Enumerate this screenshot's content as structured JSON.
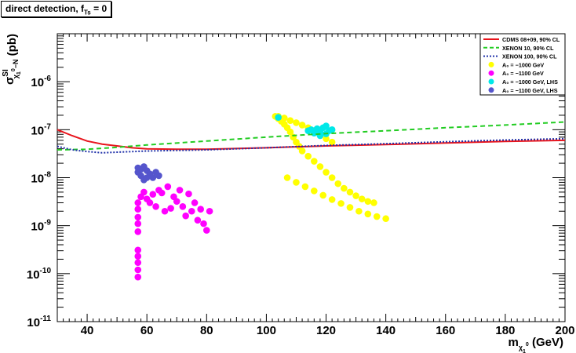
{
  "title": {
    "text": "direct detection, f",
    "sub": "Ts",
    "suffix": " = 0"
  },
  "chart_data": {
    "type": "scatter",
    "title": "direct detection, f_Ts = 0",
    "xlabel": "m_χ1⁰ (GeV)",
    "ylabel": "σ^SI_χ1⁰-N (pb)",
    "xlim": [
      30,
      200
    ],
    "ylim": [
      1e-11,
      1e-05
    ],
    "yscale": "log",
    "x_ticks": [
      40,
      60,
      80,
      100,
      120,
      140,
      160,
      180,
      200
    ],
    "x_tick_labels": [
      "40",
      "60",
      "80",
      "100",
      "120",
      "140",
      "160",
      "180",
      "200"
    ],
    "y_ticks": [
      1e-11,
      1e-10,
      1e-09,
      1e-08,
      1e-07,
      1e-06
    ],
    "y_tick_labels": [
      [
        "10",
        "-11"
      ],
      [
        "10",
        "-10"
      ],
      [
        "10",
        "-9"
      ],
      [
        "10",
        "-8"
      ],
      [
        "10",
        "-7"
      ],
      [
        "10",
        "-6"
      ]
    ],
    "grid": false,
    "legend_position": "top-right",
    "series": [
      {
        "name": "CDMS 08+09, 90% CL",
        "kind": "line",
        "color": "#e8141c",
        "dash": "solid",
        "x": [
          30,
          35,
          40,
          45,
          50,
          55,
          60,
          70,
          80,
          100,
          120,
          140,
          160,
          180,
          200
        ],
        "y": [
          1e-07,
          7.5e-08,
          5.8e-08,
          5e-08,
          4.6e-08,
          4.2e-08,
          4e-08,
          3.9e-08,
          3.9e-08,
          4.2e-08,
          4.6e-08,
          4.9e-08,
          5.3e-08,
          5.7e-08,
          6e-08
        ]
      },
      {
        "name": "XENON 10, 90% CL",
        "kind": "line",
        "color": "#22cc22",
        "dash": "dashed",
        "x": [
          30,
          40,
          50,
          60,
          80,
          100,
          120,
          140,
          160,
          180,
          200
        ],
        "y": [
          3.8e-08,
          3.9e-08,
          4.3e-08,
          4.8e-08,
          5.8e-08,
          7e-08,
          8.3e-08,
          9.5e-08,
          1.1e-07,
          1.25e-07,
          1.45e-07
        ]
      },
      {
        "name": "XENON 100, 90% CL",
        "kind": "line",
        "color": "#2233aa",
        "dash": "dotted",
        "x": [
          30,
          35,
          40,
          45,
          50,
          60,
          80,
          100,
          120,
          140,
          160,
          180,
          200
        ],
        "y": [
          4.5e-08,
          3.8e-08,
          3.5e-08,
          3.3e-08,
          3.4e-08,
          3.6e-08,
          3.8e-08,
          4.2e-08,
          4.7e-08,
          5.1e-08,
          5.6e-08,
          6.1e-08,
          6.5e-08
        ]
      },
      {
        "name": "A₀ = −1000 GeV",
        "kind": "scatter",
        "color": "#ffff00",
        "points": [
          [
            103,
            1.9e-07
          ],
          [
            104,
            1.7e-07
          ],
          [
            105,
            1.5e-07
          ],
          [
            106,
            1.3e-07
          ],
          [
            107,
            1.1e-07
          ],
          [
            108,
            9e-08
          ],
          [
            109,
            7e-08
          ],
          [
            110,
            5.5e-08
          ],
          [
            111,
            4.5e-08
          ],
          [
            112,
            3.6e-08
          ],
          [
            114,
            2.8e-08
          ],
          [
            116,
            2.2e-08
          ],
          [
            118,
            1.7e-08
          ],
          [
            120,
            1.3e-08
          ],
          [
            122,
            1e-08
          ],
          [
            124,
            7.5e-09
          ],
          [
            126,
            6e-09
          ],
          [
            128,
            5e-09
          ],
          [
            130,
            4.2e-09
          ],
          [
            132,
            3.6e-09
          ],
          [
            134,
            3.2e-09
          ],
          [
            136,
            3e-09
          ],
          [
            104,
            1.9e-07
          ],
          [
            106,
            1.75e-07
          ],
          [
            108,
            1.55e-07
          ],
          [
            110,
            1.4e-07
          ],
          [
            112,
            1.25e-07
          ],
          [
            114,
            1.1e-07
          ],
          [
            116,
            9.5e-08
          ],
          [
            118,
            8e-08
          ],
          [
            120,
            6.5e-08
          ],
          [
            122,
            5.5e-08
          ],
          [
            107,
            1e-08
          ],
          [
            110,
            8e-09
          ],
          [
            113,
            6.5e-09
          ],
          [
            116,
            5.3e-09
          ],
          [
            119,
            4.3e-09
          ],
          [
            122,
            3.5e-09
          ],
          [
            125,
            2.9e-09
          ],
          [
            128,
            2.4e-09
          ],
          [
            131,
            2e-09
          ],
          [
            134,
            1.75e-09
          ],
          [
            137,
            1.55e-09
          ],
          [
            140,
            1.4e-09
          ]
        ]
      },
      {
        "name": "A₀ = −1100 GeV",
        "kind": "scatter",
        "color": "#ff00ff",
        "points": [
          [
            57,
            8.5e-11
          ],
          [
            57,
            1.2e-10
          ],
          [
            57,
            1.7e-10
          ],
          [
            57,
            2.3e-10
          ],
          [
            57,
            3.1e-10
          ],
          [
            57,
            7.5e-10
          ],
          [
            57,
            1.1e-09
          ],
          [
            57,
            1.5e-09
          ],
          [
            57,
            2.2e-09
          ],
          [
            57,
            3e-09
          ],
          [
            58,
            4e-09
          ],
          [
            59,
            5e-09
          ],
          [
            60,
            3.6e-09
          ],
          [
            61,
            3e-09
          ],
          [
            62,
            4.5e-09
          ],
          [
            63,
            2.5e-09
          ],
          [
            64,
            5.5e-09
          ],
          [
            65,
            4.8e-09
          ],
          [
            66,
            2e-09
          ],
          [
            67,
            6.5e-09
          ],
          [
            68,
            2.3e-09
          ],
          [
            69,
            4e-09
          ],
          [
            70,
            3.2e-09
          ],
          [
            71,
            5.5e-09
          ],
          [
            72,
            2.5e-09
          ],
          [
            73,
            1.6e-09
          ],
          [
            74,
            4.6e-09
          ],
          [
            75,
            2e-09
          ],
          [
            76,
            3e-09
          ],
          [
            77,
            1.3e-09
          ],
          [
            78,
            2.2e-09
          ],
          [
            79,
            1.1e-09
          ],
          [
            80,
            8e-10
          ],
          [
            81,
            2e-09
          ]
        ]
      },
      {
        "name": "A₀ = −1000 GeV, LHS",
        "kind": "scatter",
        "color": "#00e8e8",
        "points": [
          [
            104,
            1.8e-07
          ],
          [
            114,
            9.5e-08
          ],
          [
            115,
            1e-07
          ],
          [
            116,
            8.5e-08
          ],
          [
            117,
            1.05e-07
          ],
          [
            118,
            9e-08
          ],
          [
            119,
            1.1e-07
          ],
          [
            120,
            8.2e-08
          ],
          [
            120,
            1.2e-07
          ],
          [
            121,
            9.5e-08
          ],
          [
            122,
            1e-07
          ],
          [
            118,
            7.5e-08
          ]
        ]
      },
      {
        "name": "A₀ = −1100 GeV, LHS",
        "kind": "scatter",
        "color": "#5555cc",
        "points": [
          [
            57,
            1.3e-08
          ],
          [
            58,
            1.5e-08
          ],
          [
            59,
            1.7e-08
          ],
          [
            60,
            1.4e-08
          ],
          [
            58,
            1.1e-08
          ],
          [
            59,
            9e-09
          ],
          [
            61,
            1.2e-08
          ],
          [
            62,
            1e-08
          ],
          [
            63,
            1.3e-08
          ],
          [
            64,
            1.1e-08
          ],
          [
            57,
            1.6e-08
          ],
          [
            60,
            1e-08
          ]
        ]
      }
    ],
    "legend": [
      "CDMS 08+09, 90% CL",
      "XENON 10, 90% CL",
      "XENON 100, 90% CL",
      "A₀ = −1000 GeV",
      "A₀ = −1100 GeV",
      "A₀ = −1000 GeV, LHS",
      "A₀ = −1100 GeV, LHS"
    ]
  }
}
